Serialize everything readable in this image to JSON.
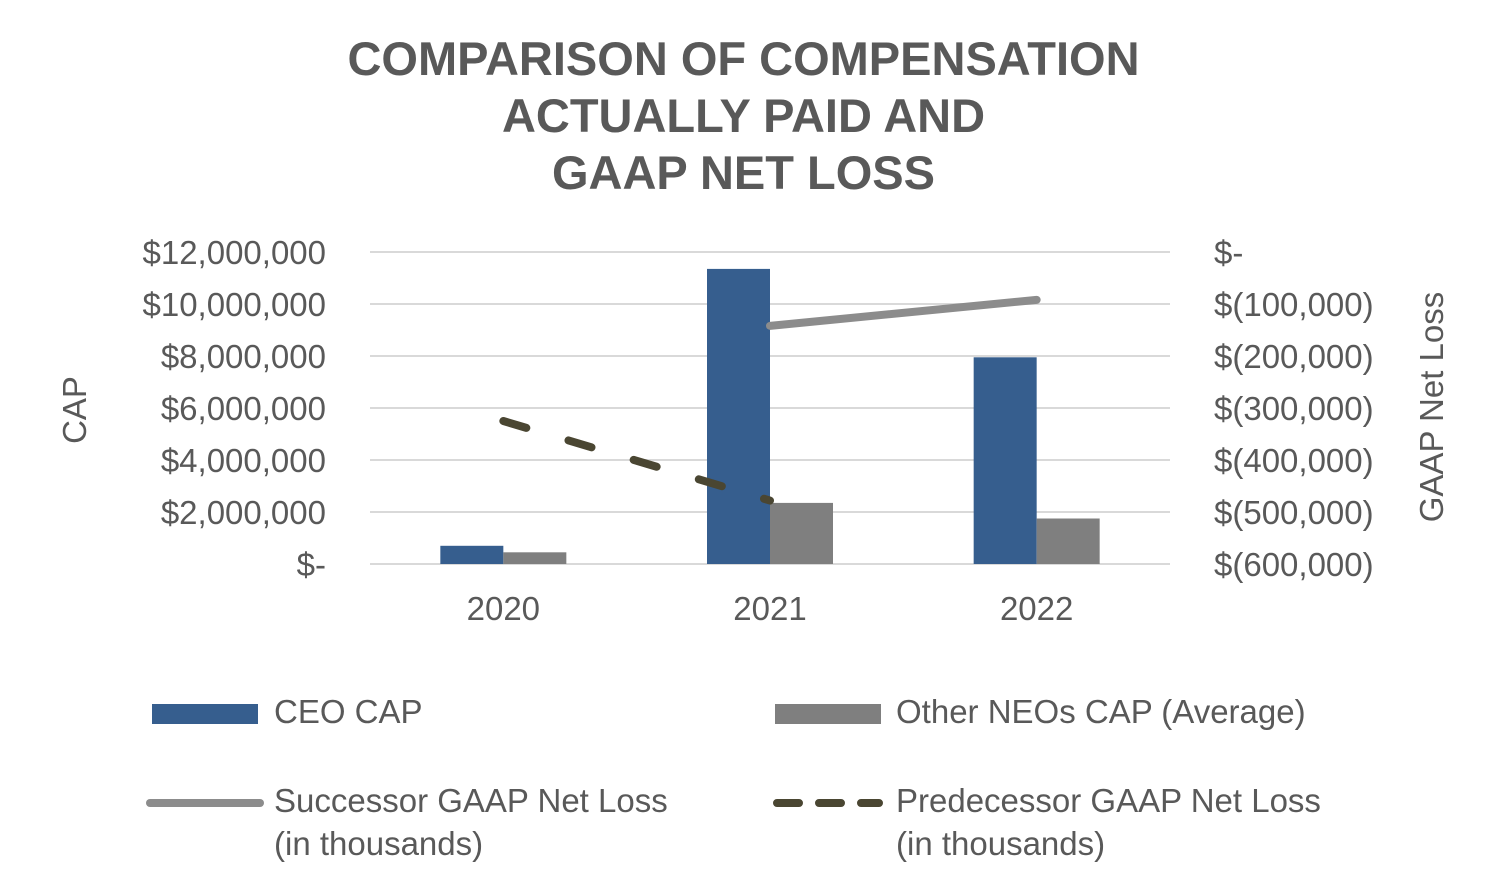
{
  "title_lines": [
    "COMPARISON OF COMPENSATION",
    "ACTUALLY PAID AND",
    "GAAP NET LOSS"
  ],
  "colors": {
    "ceo": "#365E8E",
    "neo": "#7F7F7F",
    "successor": "#8C8C8C",
    "predecessor": "#4A4632",
    "grid": "#D9D9D9",
    "text": "#595959"
  },
  "chart_data": {
    "type": "bar",
    "title": "COMPARISON OF COMPENSATION ACTUALLY PAID AND GAAP NET LOSS",
    "categories": [
      "2020",
      "2021",
      "2022"
    ],
    "ylabel": "CAP",
    "y2label": "GAAP Net Loss",
    "ylim": [
      0,
      12000000
    ],
    "y2lim": [
      -600000,
      0
    ],
    "yticks": [
      "$-",
      "$2,000,000",
      "$4,000,000",
      "$6,000,000",
      "$8,000,000",
      "$10,000,000",
      "$12,000,000"
    ],
    "y2ticks": [
      "$(600,000)",
      "$(500,000)",
      "$(400,000)",
      "$(300,000)",
      "$(200,000)",
      "$(100,000)",
      "$-"
    ],
    "series": [
      {
        "name": "CEO CAP",
        "kind": "bar",
        "axis": "left",
        "values": [
          700000,
          11350000,
          7950000
        ]
      },
      {
        "name": "Other NEOs CAP (Average)",
        "kind": "bar",
        "axis": "left",
        "values": [
          450000,
          2350000,
          1750000
        ]
      },
      {
        "name": "Successor GAAP Net Loss (in thousands)",
        "kind": "line",
        "axis": "right",
        "style": "solid",
        "points": [
          {
            "x": "2021",
            "y": -142000
          },
          {
            "x": "2022",
            "y": -92000
          }
        ]
      },
      {
        "name": "Predecessor GAAP Net Loss (in thousands)",
        "kind": "line",
        "axis": "right",
        "style": "dashed",
        "points": [
          {
            "x": "2020",
            "y": -325000
          },
          {
            "x": "2021",
            "y": -478000
          }
        ]
      }
    ],
    "legend_position": "bottom"
  },
  "legend": {
    "ceo_label": "CEO CAP",
    "neo_label": "Other NEOs CAP (Average)",
    "successor_label_1": "Successor GAAP Net Loss",
    "successor_label_2": "(in thousands)",
    "predecessor_label_1": "Predecessor GAAP Net Loss",
    "predecessor_label_2": "(in thousands)"
  }
}
